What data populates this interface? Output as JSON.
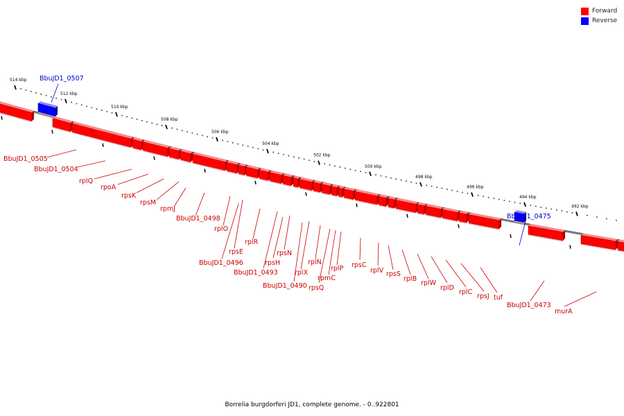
{
  "legend": {
    "forward": {
      "label": "Forward",
      "color": "#ff0000"
    },
    "reverse": {
      "label": "Reverse",
      "color": "#0000ff"
    }
  },
  "caption": "Borrelia burgdorferi JD1, complete genome. - 0..922801",
  "ruler": {
    "unit": "kbp",
    "labels": [
      "514 kbp",
      "512 kbp",
      "510 kbp",
      "508 kbp",
      "506 kbp",
      "504 kbp",
      "502 kbp",
      "500 kbp",
      "498 kbp",
      "496 kbp",
      "494 kbp",
      "492 kbp"
    ]
  },
  "genes": {
    "reverse": [
      "BbuJD1_0507",
      "BbuJD1_0475"
    ],
    "forward": [
      "BbuJD1_0505",
      "BbuJD1_0504",
      "rplQ",
      "rpoA",
      "rpsK",
      "rpsM",
      "rpmJ",
      "BbuJD1_0498",
      "rplO",
      "rpsE",
      "BbuJD1_0496",
      "rplR",
      "rpsH",
      "BbuJD1_0493",
      "rpsN",
      "rplX",
      "BbuJD1_0490",
      "rplN",
      "rpsQ",
      "rpmC",
      "rplP",
      "rpsC",
      "rplV",
      "rpsS",
      "rplB",
      "rplW",
      "rplD",
      "rplC",
      "rpsJ",
      "tuf",
      "BbuJD1_0473",
      "murA"
    ]
  }
}
